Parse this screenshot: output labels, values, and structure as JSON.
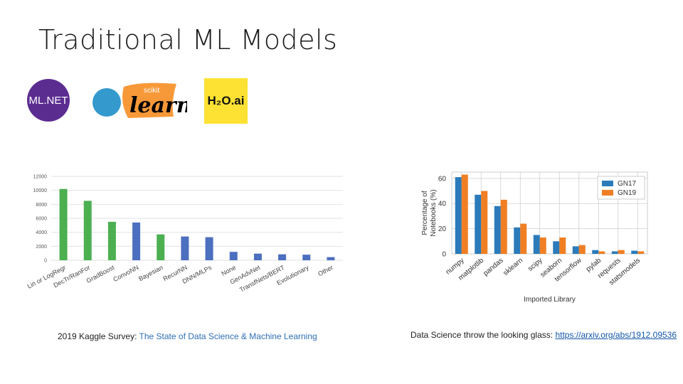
{
  "title": "Traditional ML Models",
  "logos": {
    "mlnet": "ML.NET",
    "sklearn_top": "scikit",
    "sklearn_main": "learn",
    "h2o": "H₂O.ai"
  },
  "captions": {
    "left_prefix": "2019 Kaggle Survey: ",
    "left_link": "The State of Data Science & Machine Learning",
    "right_prefix": "Data Science throw the looking glass: ",
    "right_link": "https://arxiv.org/abs/1912.09536"
  },
  "colors": {
    "green": "#4caf50",
    "blue": "#4c6fbf",
    "gn17": "#2b7bba",
    "gn19": "#f07f23"
  },
  "chart_data": [
    {
      "type": "bar",
      "categories": [
        "Lin or LogRegr",
        "DecTr/RanFor",
        "GradBoost",
        "ConvoNN",
        "Bayesian",
        "RecurNN",
        "DNN/MLPs",
        "None",
        "GenAdvNet",
        "TransfNets/BERT",
        "Evolutionary",
        "Other"
      ],
      "values": [
        10200,
        8500,
        5500,
        5400,
        3700,
        3400,
        3300,
        1200,
        950,
        850,
        800,
        450
      ],
      "bar_colors": [
        "green",
        "green",
        "green",
        "blue",
        "green",
        "blue",
        "blue",
        "blue",
        "blue",
        "blue",
        "blue",
        "blue"
      ],
      "ylim": [
        0,
        12000
      ],
      "yticks": [
        "0",
        "2000",
        "4000",
        "6000",
        "8000",
        "10000",
        "12000"
      ],
      "grid": true
    },
    {
      "type": "bar",
      "categories": [
        "numpy",
        "matplotlib",
        "pandas",
        "sklearn",
        "scipy",
        "seaborn",
        "tensorflow",
        "pylab",
        "requests",
        "statsmodels"
      ],
      "series": [
        {
          "name": "GN17",
          "values": [
            61,
            47,
            38,
            21,
            15,
            10,
            6,
            3,
            2,
            2.5
          ]
        },
        {
          "name": "GN19",
          "values": [
            63,
            50,
            43,
            24,
            13,
            13,
            7,
            2,
            3,
            2
          ]
        }
      ],
      "ylim": [
        0,
        65
      ],
      "yticks": [
        "0",
        "20",
        "40",
        "60"
      ],
      "ylabel": "Percentage of Notebooks (%)",
      "xlabel": "Imported Library",
      "legend": "top-right",
      "grid": true
    }
  ]
}
